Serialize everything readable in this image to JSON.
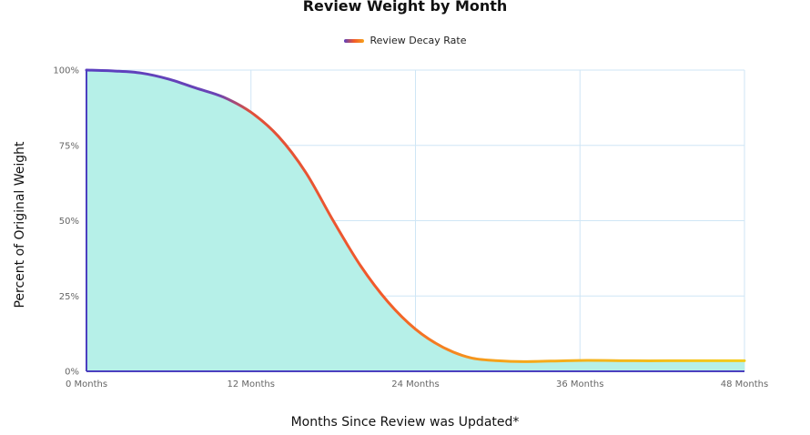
{
  "chart_data": {
    "type": "area",
    "title": "Review Weight by Month",
    "xlabel": "Months Since Review was Updated*",
    "ylabel": "Percent of Original Weight",
    "x_ticks": [
      {
        "value": 0,
        "label": "0 Months"
      },
      {
        "value": 12,
        "label": "12 Months"
      },
      {
        "value": 24,
        "label": "24 Months"
      },
      {
        "value": 36,
        "label": "36 Months"
      },
      {
        "value": 48,
        "label": "48 Months"
      }
    ],
    "y_ticks": [
      {
        "value": 0,
        "label": "0%"
      },
      {
        "value": 25,
        "label": "25%"
      },
      {
        "value": 50,
        "label": "50%"
      },
      {
        "value": 75,
        "label": "75%"
      },
      {
        "value": 100,
        "label": "100%"
      }
    ],
    "xlim": [
      0,
      48
    ],
    "ylim": [
      0,
      100
    ],
    "grid": true,
    "legend_position": "top-center",
    "series": [
      {
        "name": "Review Decay Rate",
        "x": [
          0,
          2,
          4,
          6,
          8,
          10,
          12,
          14,
          16,
          18,
          20,
          22,
          24,
          26,
          28,
          30,
          32,
          36,
          40,
          44,
          48
        ],
        "y": [
          100,
          99.7,
          99,
          97,
          94,
          91,
          86,
          78,
          66,
          50,
          35,
          23,
          14,
          8,
          4.5,
          3.5,
          3.2,
          3.6,
          3.5,
          3.5,
          3.5
        ]
      }
    ],
    "colors": {
      "line_start": "#5a3fc0",
      "line_mid": "#f25a2a",
      "line_end": "#f6a21a",
      "line_tail": "#f3cc1c",
      "area_fill": "#b6f0e8",
      "grid": "#cfe6f5",
      "axis": "#4b3fbf"
    }
  }
}
